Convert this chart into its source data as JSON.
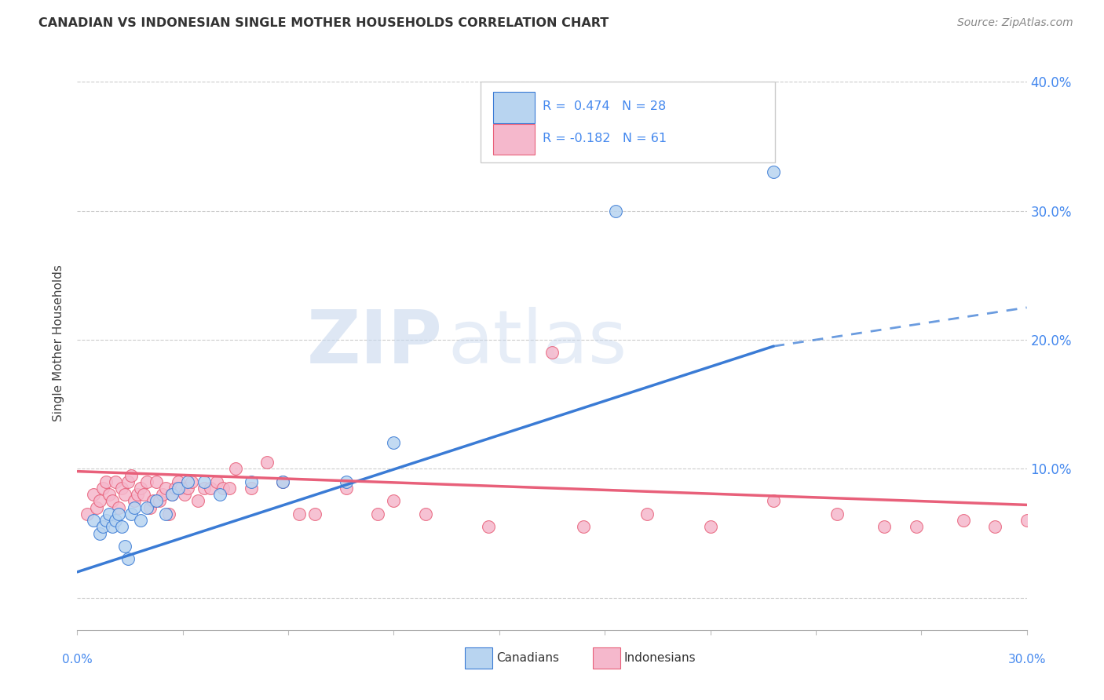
{
  "title": "CANADIAN VS INDONESIAN SINGLE MOTHER HOUSEHOLDS CORRELATION CHART",
  "source": "Source: ZipAtlas.com",
  "ylabel": "Single Mother Households",
  "xmin": 0.0,
  "xmax": 0.3,
  "ymin": -0.025,
  "ymax": 0.42,
  "legend_canadian": "R =  0.474   N = 28",
  "legend_indonesian": "R = -0.182   N = 61",
  "canadian_color": "#b8d4f0",
  "indonesian_color": "#f5b8cc",
  "trendline_canadian_color": "#3a7bd5",
  "trendline_indonesian_color": "#e8607a",
  "watermark_zip": "ZIP",
  "watermark_atlas": "atlas",
  "background_color": "#ffffff",
  "grid_color": "#cccccc",
  "canadians_x": [
    0.005,
    0.007,
    0.008,
    0.009,
    0.01,
    0.011,
    0.012,
    0.013,
    0.014,
    0.015,
    0.016,
    0.017,
    0.018,
    0.02,
    0.022,
    0.025,
    0.028,
    0.03,
    0.032,
    0.035,
    0.04,
    0.045,
    0.055,
    0.065,
    0.085,
    0.1,
    0.17,
    0.22
  ],
  "canadians_y": [
    0.06,
    0.05,
    0.055,
    0.06,
    0.065,
    0.055,
    0.06,
    0.065,
    0.055,
    0.04,
    0.03,
    0.065,
    0.07,
    0.06,
    0.07,
    0.075,
    0.065,
    0.08,
    0.085,
    0.09,
    0.09,
    0.08,
    0.09,
    0.09,
    0.09,
    0.12,
    0.3,
    0.33
  ],
  "indonesians_x": [
    0.003,
    0.005,
    0.006,
    0.007,
    0.008,
    0.009,
    0.01,
    0.011,
    0.012,
    0.013,
    0.014,
    0.015,
    0.016,
    0.017,
    0.018,
    0.019,
    0.02,
    0.021,
    0.022,
    0.023,
    0.024,
    0.025,
    0.026,
    0.027,
    0.028,
    0.029,
    0.03,
    0.031,
    0.032,
    0.033,
    0.034,
    0.035,
    0.036,
    0.038,
    0.04,
    0.042,
    0.044,
    0.046,
    0.048,
    0.05,
    0.055,
    0.06,
    0.065,
    0.07,
    0.075,
    0.085,
    0.095,
    0.1,
    0.11,
    0.13,
    0.15,
    0.16,
    0.18,
    0.2,
    0.22,
    0.24,
    0.255,
    0.265,
    0.28,
    0.29,
    0.3
  ],
  "indonesians_y": [
    0.065,
    0.08,
    0.07,
    0.075,
    0.085,
    0.09,
    0.08,
    0.075,
    0.09,
    0.07,
    0.085,
    0.08,
    0.09,
    0.095,
    0.075,
    0.08,
    0.085,
    0.08,
    0.09,
    0.07,
    0.075,
    0.09,
    0.075,
    0.08,
    0.085,
    0.065,
    0.08,
    0.085,
    0.09,
    0.085,
    0.08,
    0.085,
    0.09,
    0.075,
    0.085,
    0.085,
    0.09,
    0.085,
    0.085,
    0.1,
    0.085,
    0.105,
    0.09,
    0.065,
    0.065,
    0.085,
    0.065,
    0.075,
    0.065,
    0.055,
    0.19,
    0.055,
    0.065,
    0.055,
    0.075,
    0.065,
    0.055,
    0.055,
    0.06,
    0.055,
    0.06
  ],
  "trendline_can_x0": 0.0,
  "trendline_can_y0": 0.02,
  "trendline_can_x1": 0.22,
  "trendline_can_y1": 0.195,
  "trendline_can_dash_x1": 0.3,
  "trendline_can_dash_y1": 0.225,
  "trendline_ind_x0": 0.0,
  "trendline_ind_y0": 0.098,
  "trendline_ind_x1": 0.3,
  "trendline_ind_y1": 0.072
}
